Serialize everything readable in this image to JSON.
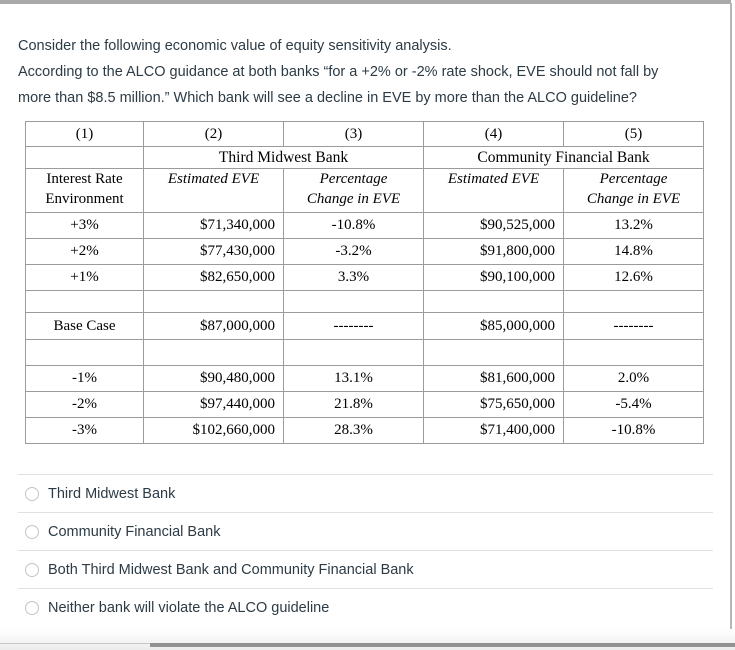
{
  "question": {
    "lines": [
      "Consider the following economic value of equity sensitivity analysis.",
      "According to the ALCO guidance at both banks “for a +2% or -2% rate shock, EVE should not fall by",
      "more than $8.5 million.” Which bank will see a decline in EVE by more than the ALCO guideline?"
    ]
  },
  "table": {
    "column_numbers": [
      "(1)",
      "(2)",
      "(3)",
      "(4)",
      "(5)"
    ],
    "bank_groups": [
      "Third Midwest Bank",
      "Community Financial Bank"
    ],
    "row_header": "Interest Rate\nEnvironment",
    "sub_headers": [
      "Estimated EVE",
      "Percentage\nChange in EVE",
      "Estimated EVE",
      "Percentage\nChange in EVE"
    ],
    "rows": [
      [
        "+3%",
        "$71,340,000",
        "-10.8%",
        "$90,525,000",
        "13.2%"
      ],
      [
        "+2%",
        "$77,430,000",
        "-3.2%",
        "$91,800,000",
        "14.8%"
      ],
      [
        "+1%",
        "$82,650,000",
        "3.3%",
        "$90,100,000",
        "12.6%"
      ],
      [
        "",
        "",
        "",
        "",
        ""
      ],
      [
        "Base Case",
        "$87,000,000",
        "--------",
        "$85,000,000",
        "--------"
      ],
      [
        "",
        "",
        "",
        "",
        ""
      ],
      [
        "-1%",
        "$90,480,000",
        "13.1%",
        "$81,600,000",
        "2.0%"
      ],
      [
        "-2%",
        "$97,440,000",
        "21.8%",
        "$75,650,000",
        "-5.4%"
      ],
      [
        "-3%",
        "$102,660,000",
        "28.3%",
        "$71,400,000",
        "-10.8%"
      ]
    ]
  },
  "options": [
    "Third Midwest Bank",
    "Community Financial Bank",
    "Both Third Midwest Bank and Community Financial Bank",
    "Neither bank will violate the ALCO guideline"
  ],
  "colors": {
    "question_text": "#2d3b45",
    "table_text": "#000000",
    "table_border": "#9b9b9b",
    "option_divider": "#e0e0e0",
    "radio_border": "#c1c5c9",
    "chrome_bar": "#a9a9a9"
  }
}
